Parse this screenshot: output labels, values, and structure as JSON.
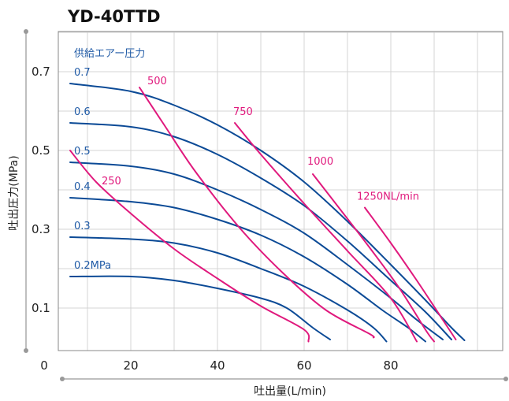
{
  "chart_data": {
    "type": "line",
    "title": "YD-40TTD",
    "xlabel": "吐出量(L/min)",
    "ylabel": "吐出圧力(MPa)",
    "xlim": [
      0,
      100
    ],
    "ylim": [
      0,
      0.8
    ],
    "x_ticks": [
      "0",
      "20",
      "40",
      "60",
      "80"
    ],
    "y_ticks": [
      "0.1",
      "0.3",
      "0.5",
      "0.7"
    ],
    "grid": true,
    "legend_title": "供給エアー圧力",
    "series": [
      {
        "name": "0.7",
        "color": "#0b4a96",
        "points": [
          [
            6,
            0.67
          ],
          [
            20,
            0.65
          ],
          [
            30,
            0.615
          ],
          [
            40,
            0.565
          ],
          [
            50,
            0.5
          ],
          [
            60,
            0.42
          ],
          [
            70,
            0.32
          ],
          [
            80,
            0.21
          ],
          [
            88,
            0.12
          ],
          [
            94,
            0.05
          ],
          [
            97,
            0.018
          ]
        ]
      },
      {
        "name": "0.6",
        "color": "#0b4a96",
        "points": [
          [
            6,
            0.57
          ],
          [
            20,
            0.56
          ],
          [
            30,
            0.535
          ],
          [
            40,
            0.49
          ],
          [
            50,
            0.43
          ],
          [
            60,
            0.36
          ],
          [
            70,
            0.27
          ],
          [
            80,
            0.17
          ],
          [
            88,
            0.09
          ],
          [
            94,
            0.02
          ]
        ]
      },
      {
        "name": "0.5",
        "color": "#0b4a96",
        "points": [
          [
            6,
            0.47
          ],
          [
            20,
            0.46
          ],
          [
            30,
            0.44
          ],
          [
            40,
            0.4
          ],
          [
            50,
            0.35
          ],
          [
            60,
            0.29
          ],
          [
            70,
            0.21
          ],
          [
            80,
            0.125
          ],
          [
            86,
            0.07
          ],
          [
            92,
            0.02
          ]
        ]
      },
      {
        "name": "0.4",
        "color": "#0b4a96",
        "points": [
          [
            6,
            0.38
          ],
          [
            20,
            0.37
          ],
          [
            30,
            0.355
          ],
          [
            40,
            0.325
          ],
          [
            50,
            0.285
          ],
          [
            60,
            0.23
          ],
          [
            70,
            0.16
          ],
          [
            78,
            0.095
          ],
          [
            84,
            0.05
          ],
          [
            88,
            0.015
          ]
        ]
      },
      {
        "name": "0.3",
        "color": "#0b4a96",
        "points": [
          [
            6,
            0.28
          ],
          [
            20,
            0.275
          ],
          [
            30,
            0.265
          ],
          [
            40,
            0.24
          ],
          [
            50,
            0.2
          ],
          [
            60,
            0.155
          ],
          [
            70,
            0.095
          ],
          [
            76,
            0.05
          ],
          [
            79,
            0.015
          ]
        ]
      },
      {
        "name": "0.2MPa",
        "color": "#0b4a96",
        "points": [
          [
            6,
            0.18
          ],
          [
            20,
            0.18
          ],
          [
            30,
            0.17
          ],
          [
            40,
            0.15
          ],
          [
            50,
            0.125
          ],
          [
            56,
            0.1
          ],
          [
            62,
            0.05
          ],
          [
            66,
            0.02
          ]
        ]
      },
      {
        "name": "250",
        "color": "#e0197d",
        "points": [
          [
            6,
            0.5
          ],
          [
            12,
            0.42
          ],
          [
            20,
            0.34
          ],
          [
            30,
            0.25
          ],
          [
            40,
            0.175
          ],
          [
            50,
            0.105
          ],
          [
            60,
            0.045
          ],
          [
            61,
            0.015
          ]
        ]
      },
      {
        "name": "500",
        "color": "#e0197d",
        "points": [
          [
            22,
            0.66
          ],
          [
            28,
            0.56
          ],
          [
            35,
            0.445
          ],
          [
            45,
            0.305
          ],
          [
            55,
            0.19
          ],
          [
            65,
            0.095
          ],
          [
            75,
            0.035
          ],
          [
            76,
            0.025
          ]
        ]
      },
      {
        "name": "750",
        "color": "#e0197d",
        "points": [
          [
            44,
            0.57
          ],
          [
            50,
            0.49
          ],
          [
            60,
            0.365
          ],
          [
            70,
            0.245
          ],
          [
            80,
            0.125
          ],
          [
            86,
            0.015
          ]
        ]
      },
      {
        "name": "1000",
        "color": "#e0197d",
        "points": [
          [
            62,
            0.44
          ],
          [
            68,
            0.355
          ],
          [
            75,
            0.255
          ],
          [
            82,
            0.15
          ],
          [
            88,
            0.045
          ],
          [
            90,
            0.015
          ]
        ]
      },
      {
        "name": "1250NL/min",
        "color": "#e0197d",
        "points": [
          [
            74,
            0.355
          ],
          [
            80,
            0.265
          ],
          [
            86,
            0.17
          ],
          [
            92,
            0.07
          ],
          [
            95,
            0.02
          ]
        ]
      }
    ]
  }
}
